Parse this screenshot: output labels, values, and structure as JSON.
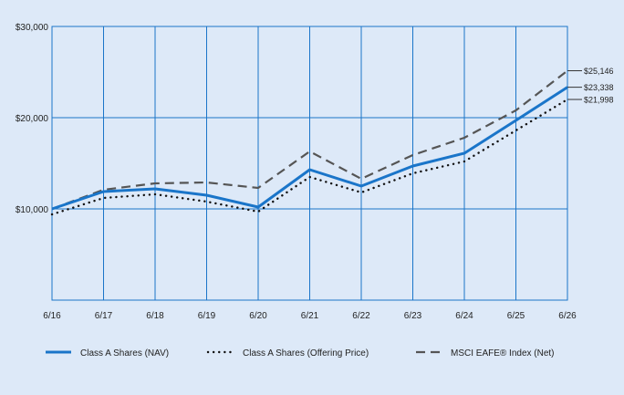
{
  "chart_data": {
    "type": "line",
    "x": [
      "6/16",
      "6/17",
      "6/18",
      "6/19",
      "6/20",
      "6/21",
      "6/22",
      "6/23",
      "6/24",
      "6/25",
      "6/26"
    ],
    "yticks": [
      {
        "value": 10000,
        "label": "$10,000"
      },
      {
        "value": 20000,
        "label": "$20,000"
      },
      {
        "value": 30000,
        "label": "$30,000"
      }
    ],
    "ylim": [
      0,
      30000
    ],
    "grid": true,
    "legend_position": "bottom",
    "colors": {
      "background": "#dde9f8",
      "grid": "#1a75c9",
      "nav": "#1a75c9",
      "offering": "#111111",
      "index": "#555555"
    },
    "series": [
      {
        "name": "Class A Shares (NAV)",
        "style": "solid",
        "values": [
          10000,
          11900,
          12200,
          11500,
          10200,
          14300,
          12500,
          14700,
          16100,
          19700,
          23338
        ],
        "end_label": "$23,338"
      },
      {
        "name": "Class A Shares (Offering Price)",
        "style": "dotted",
        "values": [
          9400,
          11200,
          11600,
          10800,
          9700,
          13500,
          11800,
          13900,
          15200,
          18600,
          21998
        ],
        "end_label": "$21,998"
      },
      {
        "name": "MSCI EAFE® Index (Net)",
        "style": "dashed",
        "values": [
          10000,
          12100,
          12800,
          12900,
          12300,
          16300,
          13300,
          15900,
          17800,
          20800,
          25146
        ],
        "end_label": "$25,146"
      }
    ]
  }
}
